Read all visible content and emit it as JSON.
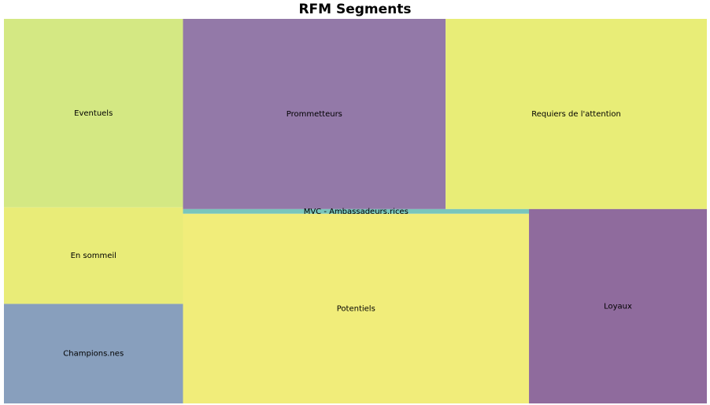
{
  "chart_data": {
    "type": "treemap",
    "title": "RFM Segments",
    "categories": [
      "Eventuels",
      "En sommeil",
      "Champions.nes",
      "Prommetteurs",
      "Requiers de l'attention",
      "MVC - Ambassadeurs.rices",
      "Potentiels",
      "Loyaux"
    ],
    "values": [
      125,
      64,
      66,
      185,
      184,
      6,
      243,
      128
    ],
    "colors": [
      "#d4e883",
      "#e9ec78",
      "#889fbd",
      "#9379a8",
      "#e8ed77",
      "#79c6bc",
      "#f1ed7a",
      "#8f6b9d"
    ]
  }
}
